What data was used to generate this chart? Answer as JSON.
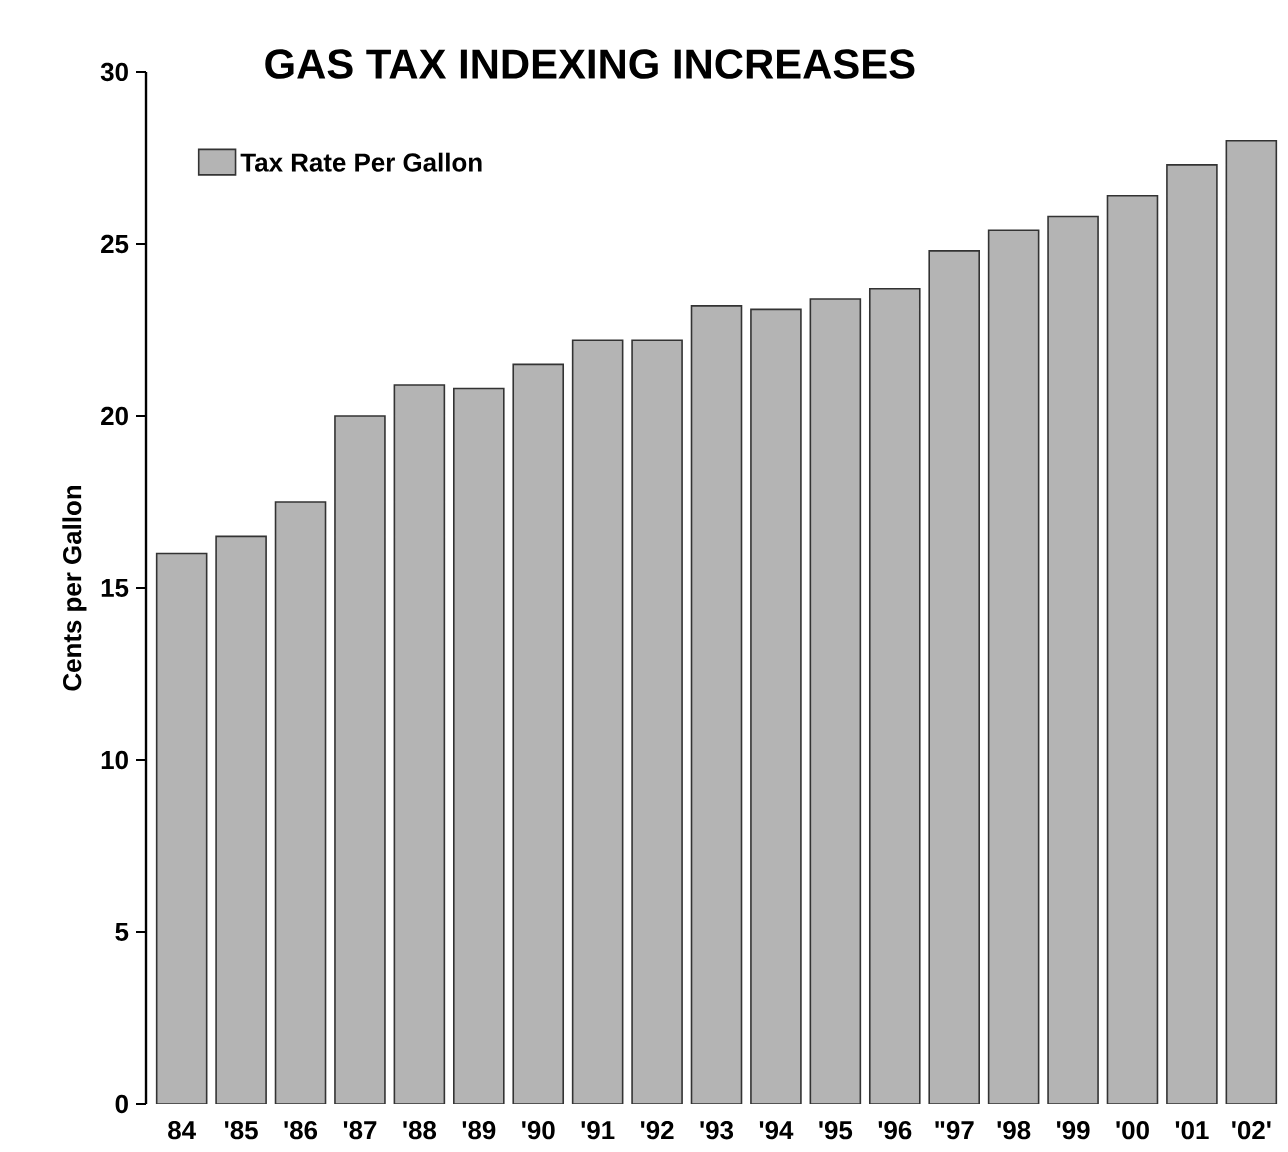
{
  "chart_data": {
    "type": "bar",
    "title": "GAS TAX INDEXING INCREASES",
    "ylabel": "Cents per Gallon",
    "categories": [
      "84",
      "'85",
      "'86",
      "'87",
      "'88",
      "'89",
      "'90",
      "'91",
      "'92",
      "'93",
      "'94",
      "'95",
      "'96",
      "\"97",
      "'98",
      "'99",
      "'00",
      "'01",
      "'02'"
    ],
    "series": [
      {
        "name": "Tax Rate Per Gallon",
        "color": "#b4b4b4",
        "values": [
          16,
          16.5,
          17.5,
          20,
          20.9,
          20.8,
          21.5,
          22.2,
          22.2,
          23.2,
          23.1,
          23.4,
          23.7,
          24.8,
          25.4,
          25.8,
          26.4,
          27.3,
          28
        ]
      }
    ],
    "ylim": [
      0,
      30
    ],
    "yticks": [
      0,
      5,
      10,
      15,
      20,
      25,
      30
    ],
    "legend": "top left",
    "grid": false
  }
}
